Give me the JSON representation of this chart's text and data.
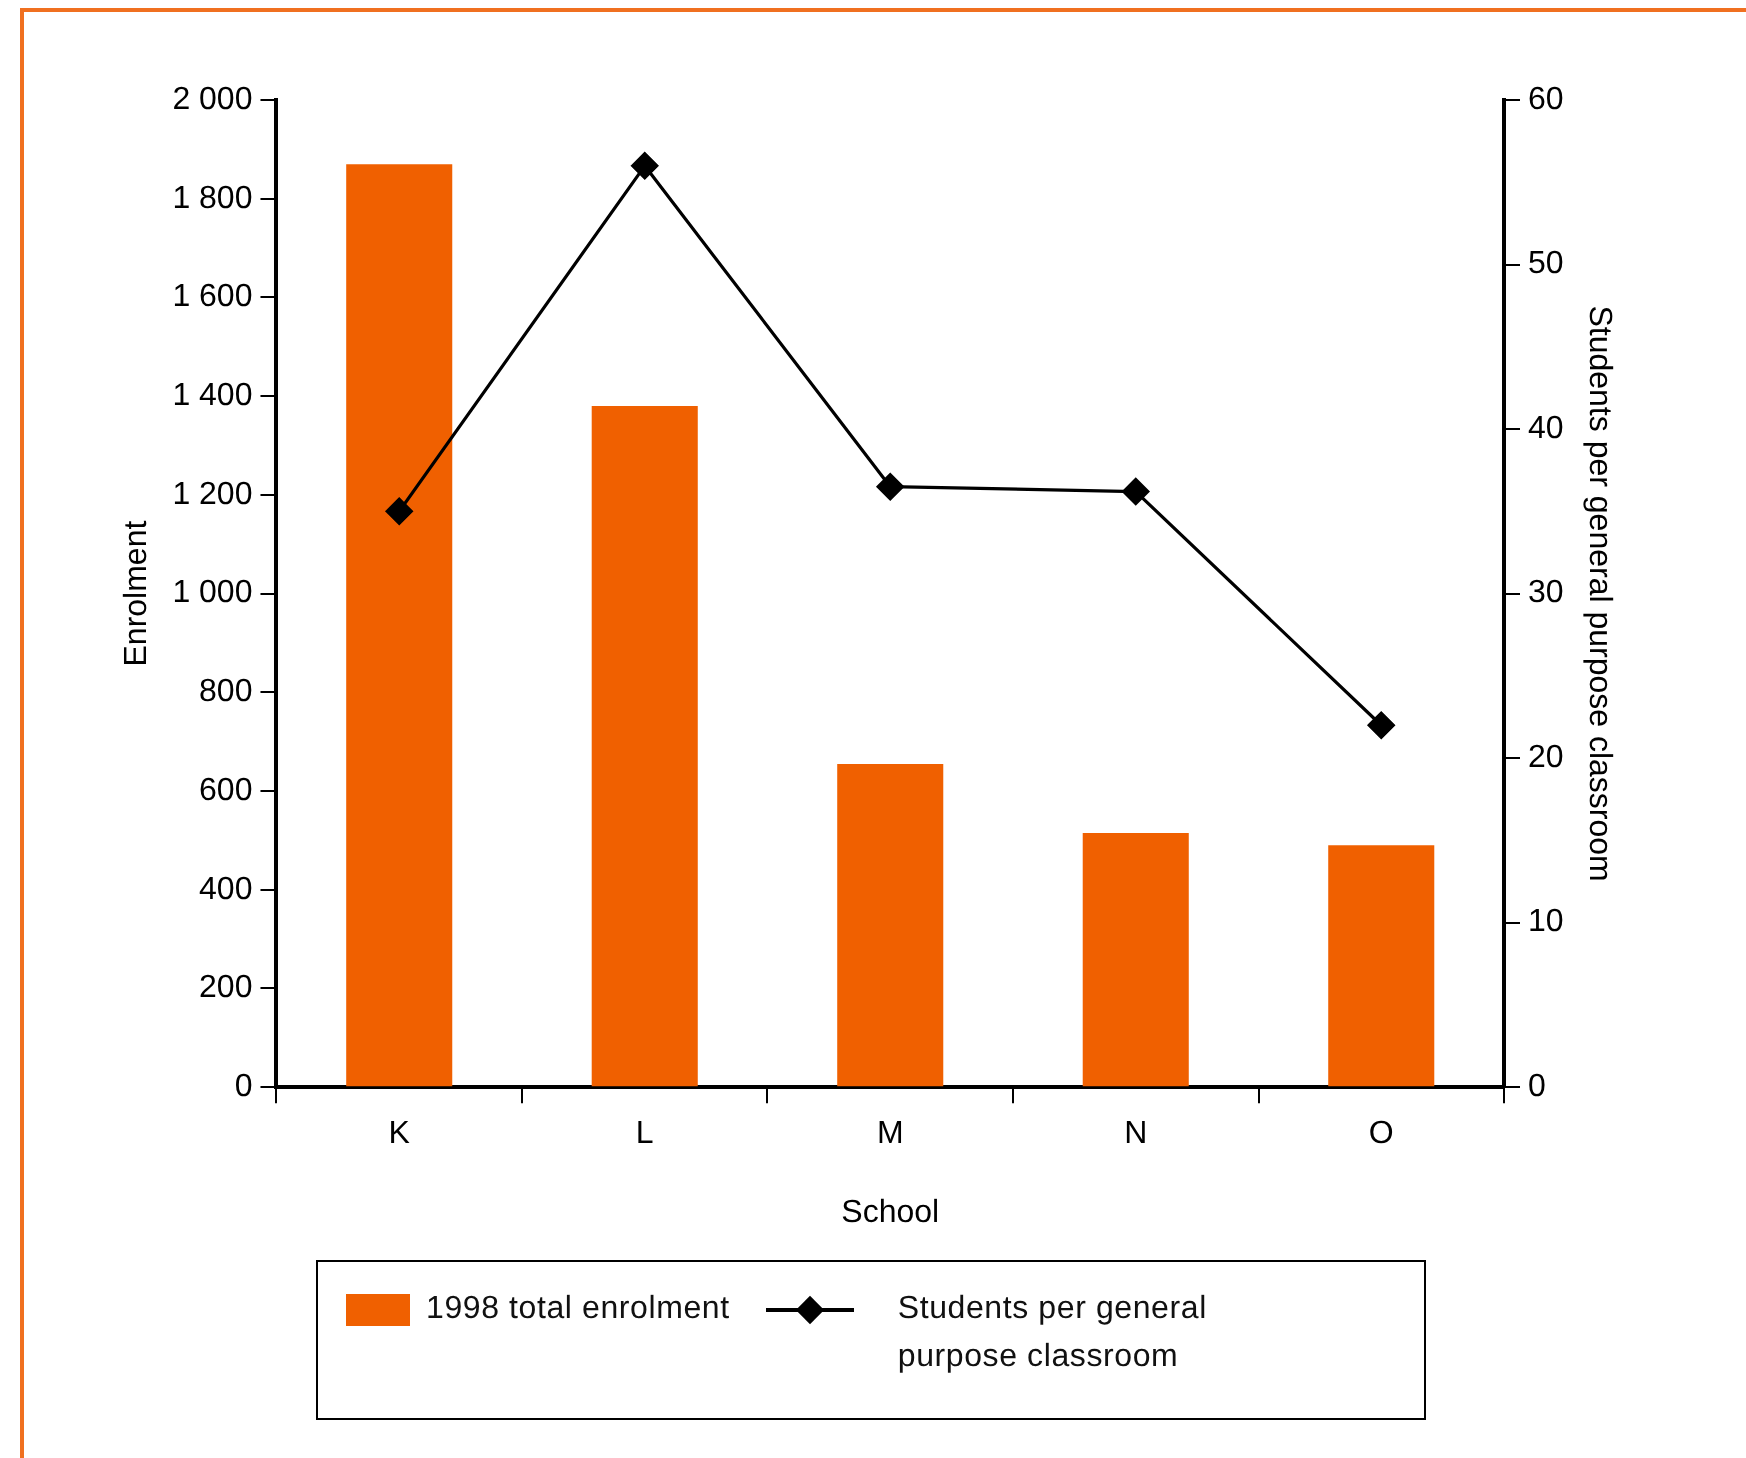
{
  "chart_data": {
    "type": "bar",
    "xlabel": "School",
    "ylabel": "Enrolment",
    "y2label": "Students per general purpose classroom",
    "categories": [
      "K",
      "L",
      "M",
      "N",
      "O"
    ],
    "series": [
      {
        "name": "1998 total enrolment",
        "color": "#f06000",
        "values": [
          1870,
          1380,
          655,
          515,
          490
        ]
      },
      {
        "name": "Students per general purpose classroom",
        "type": "line",
        "axis": "y2",
        "color": "#000000",
        "marker": "diamond",
        "values": [
          35,
          56,
          36.5,
          36.2,
          22
        ]
      }
    ],
    "ylim": [
      0,
      2000
    ],
    "yticks": [
      0,
      200,
      400,
      600,
      800,
      {
        "value": 1000,
        "label": "1 000"
      },
      {
        "value": 1200,
        "label": "1 200"
      },
      {
        "value": 1400,
        "label": "1 400"
      },
      {
        "value": 1600,
        "label": "1 600"
      },
      {
        "value": 1800,
        "label": "1 800"
      },
      {
        "value": 2000,
        "label": "2 000"
      }
    ],
    "y2lim": [
      0,
      60
    ],
    "y2ticks": [
      0,
      10,
      20,
      30,
      40,
      50,
      60
    ],
    "grid": false,
    "legend": "bottom"
  }
}
